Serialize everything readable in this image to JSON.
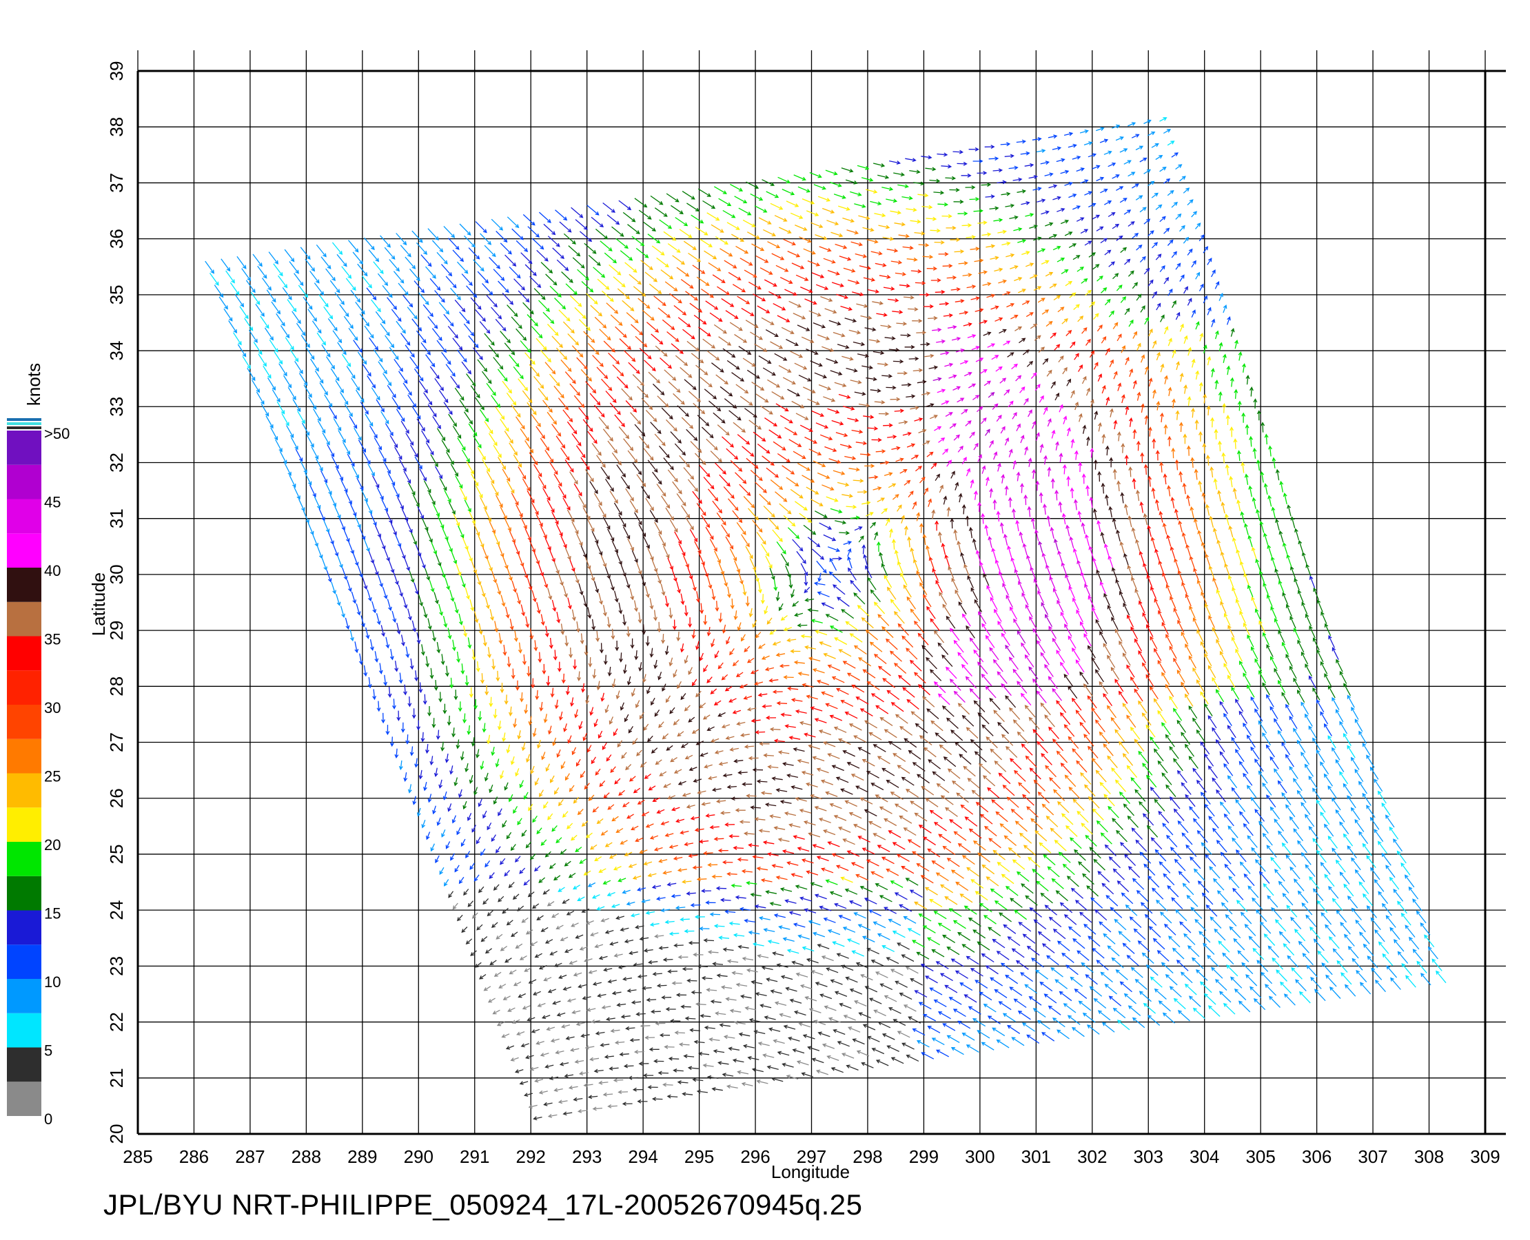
{
  "chart_data": {
    "type": "wind-vector-map",
    "caption": "JPL/BYU  NRT-PHILIPPE_050924_17L-20052670945q.25",
    "xlabel": "Longitude",
    "ylabel": "Latitude",
    "xlim": [
      285,
      309
    ],
    "ylim": [
      20,
      39
    ],
    "x_ticks": [
      "285",
      "286",
      "287",
      "288",
      "289",
      "290",
      "291",
      "292",
      "293",
      "294",
      "295",
      "296",
      "297",
      "298",
      "299",
      "300",
      "301",
      "302",
      "303",
      "304",
      "305",
      "306",
      "307",
      "308",
      "309"
    ],
    "y_ticks": [
      "20",
      "21",
      "22",
      "23",
      "24",
      "25",
      "26",
      "27",
      "28",
      "29",
      "30",
      "31",
      "32",
      "33",
      "34",
      "35",
      "36",
      "37",
      "38",
      "39"
    ],
    "grid": true,
    "storm_center": {
      "lon": 297.3,
      "lat": 30.1
    },
    "swath_corners": [
      {
        "lon": 286.2,
        "lat": 35.6
      },
      {
        "lon": 303.2,
        "lat": 38.1
      },
      {
        "lon": 308.3,
        "lat": 22.7
      },
      {
        "lon": 292.2,
        "lat": 20.3
      }
    ],
    "colorbar": {
      "unit": "knots",
      "labels": [
        ">50",
        "45",
        "40",
        "35",
        "30",
        "25",
        "20",
        "15",
        "10",
        "5",
        "0"
      ],
      "bands": [
        {
          "from": 0,
          "to": 2.5,
          "color": "#8a8a8a"
        },
        {
          "from": 2.5,
          "to": 5,
          "color": "#2e2e2e"
        },
        {
          "from": 5,
          "to": 7.5,
          "color": "#00e6ff"
        },
        {
          "from": 7.5,
          "to": 10,
          "color": "#0099ff"
        },
        {
          "from": 10,
          "to": 12.5,
          "color": "#0044ff"
        },
        {
          "from": 12.5,
          "to": 15,
          "color": "#1a1ad6"
        },
        {
          "from": 15,
          "to": 17.5,
          "color": "#007a00"
        },
        {
          "from": 17.5,
          "to": 20,
          "color": "#00e600"
        },
        {
          "from": 20,
          "to": 22.5,
          "color": "#ffee00"
        },
        {
          "from": 22.5,
          "to": 25,
          "color": "#ffbb00"
        },
        {
          "from": 25,
          "to": 27.5,
          "color": "#ff7a00"
        },
        {
          "from": 27.5,
          "to": 30,
          "color": "#ff4400"
        },
        {
          "from": 30,
          "to": 32.5,
          "color": "#ff2200"
        },
        {
          "from": 32.5,
          "to": 35,
          "color": "#ff0000"
        },
        {
          "from": 35,
          "to": 37.5,
          "color": "#b87040"
        },
        {
          "from": 37.5,
          "to": 40,
          "color": "#301010"
        },
        {
          "from": 40,
          "to": 42.5,
          "color": "#ff00ff"
        },
        {
          "from": 42.5,
          "to": 45,
          "color": "#e000e8"
        },
        {
          "from": 45,
          "to": 47.5,
          "color": "#b000d0"
        },
        {
          "from": 47.5,
          "to": 50,
          "color": "#7010c0"
        }
      ]
    }
  }
}
